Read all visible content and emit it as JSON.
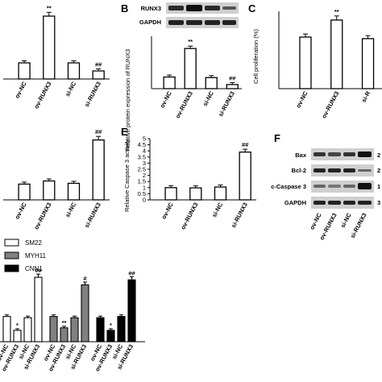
{
  "panels": {
    "A": {
      "categories": [
        "ov-NC",
        "ov-RUNX3",
        "si-NC",
        "si-RUNX3"
      ],
      "values": [
        1.0,
        3.9,
        1.0,
        0.5
      ],
      "sig": [
        "",
        "**",
        "",
        "##"
      ]
    },
    "B": {
      "letter": "B",
      "blot_labels": [
        "RUNX3",
        "GAPDH"
      ],
      "ylabel": "Relative protein expression of RUNX3",
      "categories": [
        "ov-NC",
        "ov-RUNX3",
        "si-NC",
        "si-RUNX3"
      ],
      "values": [
        1.0,
        3.45,
        0.95,
        0.35
      ],
      "sig": [
        "",
        "**",
        "",
        "##"
      ]
    },
    "C": {
      "letter": "C",
      "ylabel": "Cell proliferation (%)",
      "categories": [
        "ov-NC",
        "ov-RUNX3",
        "si-R"
      ],
      "values": [
        100,
        133,
        97
      ],
      "sig": [
        "",
        "**",
        ""
      ]
    },
    "D": {
      "categories": [
        "ov-NC",
        "ov-RUNX3",
        "si-NC",
        "si-RUNX3"
      ],
      "values": [
        1.0,
        1.2,
        1.05,
        3.8
      ],
      "sig": [
        "",
        "",
        "",
        "##"
      ]
    },
    "E": {
      "letter": "E",
      "ylabel": "Relative Caspase 3 activity",
      "categories": [
        "ov-NC",
        "ov-RUNX3",
        "si-NC",
        "si-RUNX3"
      ],
      "values": [
        1.0,
        0.98,
        1.05,
        3.9
      ],
      "sig": [
        "",
        "",
        "",
        "##"
      ]
    },
    "F": {
      "letter": "F",
      "blot_labels": [
        "Bax",
        "Bcl-2",
        "c-Caspase 3",
        "GAPDH"
      ],
      "size_marks": [
        "2",
        "2",
        "1",
        "3"
      ],
      "categories": [
        "ov-NC",
        "ov-RUNX3",
        "si-NC",
        "si-RUNX3"
      ]
    },
    "G": {
      "legend": [
        "SM22",
        "MYH11",
        "CNN1"
      ],
      "categories": [
        "ov-NC",
        "ov-RUNX3",
        "si-NC",
        "si-RUNX3"
      ]
    }
  },
  "chart_data": [
    {
      "type": "bar",
      "panel": "A",
      "categories": [
        "ov-NC",
        "ov-RUNX3",
        "si-NC",
        "si-RUNX3"
      ],
      "values": [
        1.0,
        3.9,
        1.0,
        0.5
      ],
      "annotations": [
        "",
        "**",
        "",
        "##"
      ]
    },
    {
      "type": "bar",
      "panel": "B",
      "categories": [
        "ov-NC",
        "ov-RUNX3",
        "si-NC",
        "si-RUNX3"
      ],
      "values": [
        1.0,
        3.45,
        0.95,
        0.35
      ],
      "ylabel": "Relative protein expression of RUNX3",
      "annotations": [
        "",
        "**",
        "",
        "##"
      ]
    },
    {
      "type": "bar",
      "panel": "C",
      "categories": [
        "ov-NC",
        "ov-RUNX3",
        "si-R"
      ],
      "values": [
        100,
        133,
        97
      ],
      "ylabel": "Cell proliferation (%)",
      "annotations": [
        "",
        "**",
        ""
      ]
    },
    {
      "type": "bar",
      "panel": "D",
      "categories": [
        "ov-NC",
        "ov-RUNX3",
        "si-NC",
        "si-RUNX3"
      ],
      "values": [
        1.0,
        1.2,
        1.05,
        3.8
      ],
      "annotations": [
        "",
        "",
        "",
        "##"
      ]
    },
    {
      "type": "bar",
      "panel": "E",
      "categories": [
        "ov-NC",
        "ov-RUNX3",
        "si-NC",
        "si-RUNX3"
      ],
      "values": [
        1.0,
        0.98,
        1.05,
        3.9
      ],
      "ylabel": "Relative Caspase 3 activity",
      "ylim": [
        0,
        5
      ],
      "yticks": [
        "0",
        "0.5",
        "1",
        "1.5",
        "2",
        "2.5",
        "3",
        "3.5",
        "4",
        "4.5",
        "5"
      ],
      "annotations": [
        "",
        "",
        "",
        "##"
      ]
    },
    {
      "type": "bar",
      "panel": "G",
      "categories": [
        "ov-NC",
        "ov-RUNX3",
        "si-NC",
        "si-RUNX3"
      ],
      "series": [
        {
          "name": "SM22",
          "color": "#ffffff",
          "values": [
            1.0,
            0.45,
            0.95,
            2.55
          ],
          "annotations": [
            "",
            "*",
            "",
            "##"
          ]
        },
        {
          "name": "MYH11",
          "color": "#808080",
          "values": [
            1.0,
            0.55,
            0.95,
            2.25
          ],
          "annotations": [
            "",
            "**",
            "",
            "#"
          ]
        },
        {
          "name": "CNN1",
          "color": "#000000",
          "values": [
            0.95,
            0.45,
            1.0,
            2.45
          ],
          "annotations": [
            "",
            "*",
            "",
            "##"
          ]
        }
      ],
      "legend_position": "top-left"
    }
  ]
}
